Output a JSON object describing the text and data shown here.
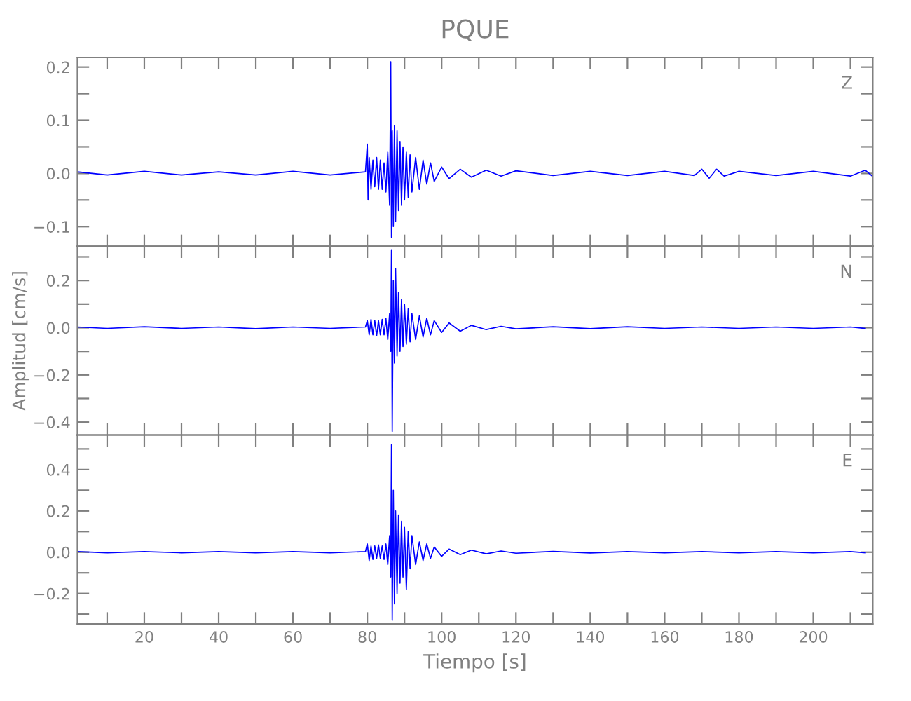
{
  "chart_data": [
    {
      "type": "line",
      "title": "PQUE",
      "annotations": [
        "Z"
      ],
      "tick_labels": "y",
      "grid": false,
      "legend": false,
      "marker": "none",
      "line_style": "solid",
      "xlim": [
        2,
        216
      ],
      "xticks": [
        {
          "value": 10,
          "label": null
        },
        {
          "value": 20,
          "label": null
        },
        {
          "value": 30,
          "label": null
        },
        {
          "value": 40,
          "label": null
        },
        {
          "value": 50,
          "label": null
        },
        {
          "value": 60,
          "label": null
        },
        {
          "value": 70,
          "label": null
        },
        {
          "value": 80,
          "label": null
        },
        {
          "value": 90,
          "label": null
        },
        {
          "value": 100,
          "label": null
        },
        {
          "value": 110,
          "label": null
        },
        {
          "value": 120,
          "label": null
        },
        {
          "value": 130,
          "label": null
        },
        {
          "value": 140,
          "label": null
        },
        {
          "value": 150,
          "label": null
        },
        {
          "value": 160,
          "label": null
        },
        {
          "value": 170,
          "label": null
        },
        {
          "value": 180,
          "label": null
        },
        {
          "value": 190,
          "label": null
        },
        {
          "value": 200,
          "label": null
        },
        {
          "value": 210,
          "label": null
        }
      ],
      "ylim": [
        -0.137,
        0.218
      ],
      "yticks": [
        {
          "value": -0.1,
          "label": "−0.1"
        },
        {
          "value": -0.05,
          "label": null
        },
        {
          "value": 0.0,
          "label": "0.0"
        },
        {
          "value": 0.05,
          "label": null
        },
        {
          "value": 0.1,
          "label": "0.1"
        },
        {
          "value": 0.15,
          "label": null
        },
        {
          "value": 0.2,
          "label": "0.2"
        }
      ],
      "series": [
        {
          "color": "#0000ff",
          "x": [
            2,
            10,
            20,
            30,
            40,
            50,
            60,
            70,
            79.5,
            80,
            80.2,
            80.5,
            81,
            81.5,
            82,
            82.5,
            83,
            83.5,
            84,
            84.5,
            85,
            85.5,
            86,
            86.3,
            86.5,
            86.7,
            87,
            87.3,
            87.6,
            88,
            88.4,
            88.8,
            89.2,
            89.6,
            90,
            90.5,
            91,
            91.5,
            92,
            93,
            94,
            95,
            96,
            97,
            98,
            100,
            102,
            105,
            108,
            112,
            116,
            120,
            130,
            140,
            150,
            160,
            168,
            170,
            172,
            174,
            176,
            180,
            190,
            200,
            210,
            214,
            216
          ],
          "values": [
            0.003,
            -0.003,
            0.004,
            -0.003,
            0.003,
            -0.003,
            0.004,
            -0.003,
            0.003,
            0.055,
            -0.05,
            0.03,
            -0.03,
            0.025,
            -0.025,
            0.03,
            -0.03,
            0.025,
            -0.03,
            0.02,
            -0.035,
            0.04,
            -0.06,
            0.21,
            -0.12,
            0.08,
            -0.1,
            0.09,
            -0.09,
            0.08,
            -0.07,
            0.06,
            -0.06,
            0.05,
            -0.05,
            0.04,
            -0.045,
            0.035,
            -0.035,
            0.03,
            -0.03,
            0.025,
            -0.02,
            0.02,
            -0.015,
            0.012,
            -0.01,
            0.008,
            -0.007,
            0.006,
            -0.005,
            0.005,
            -0.004,
            0.004,
            -0.004,
            0.004,
            -0.004,
            0.008,
            -0.009,
            0.008,
            -0.005,
            0.004,
            -0.004,
            0.004,
            -0.005,
            0.006,
            -0.006
          ]
        }
      ]
    },
    {
      "type": "line",
      "ylabel": "Amplitud [cm/s]",
      "annotations": [
        "N"
      ],
      "tick_labels": "y",
      "grid": false,
      "legend": false,
      "marker": "none",
      "line_style": "solid",
      "xlim": [
        2,
        216
      ],
      "xticks": [
        {
          "value": 10,
          "label": null
        },
        {
          "value": 20,
          "label": null
        },
        {
          "value": 30,
          "label": null
        },
        {
          "value": 40,
          "label": null
        },
        {
          "value": 50,
          "label": null
        },
        {
          "value": 60,
          "label": null
        },
        {
          "value": 70,
          "label": null
        },
        {
          "value": 80,
          "label": null
        },
        {
          "value": 90,
          "label": null
        },
        {
          "value": 100,
          "label": null
        },
        {
          "value": 110,
          "label": null
        },
        {
          "value": 120,
          "label": null
        },
        {
          "value": 130,
          "label": null
        },
        {
          "value": 140,
          "label": null
        },
        {
          "value": 150,
          "label": null
        },
        {
          "value": 160,
          "label": null
        },
        {
          "value": 170,
          "label": null
        },
        {
          "value": 180,
          "label": null
        },
        {
          "value": 190,
          "label": null
        },
        {
          "value": 200,
          "label": null
        },
        {
          "value": 210,
          "label": null
        }
      ],
      "ylim": [
        -0.455,
        0.345
      ],
      "yticks": [
        {
          "value": -0.4,
          "label": "−0.4"
        },
        {
          "value": -0.3,
          "label": null
        },
        {
          "value": -0.2,
          "label": "−0.2"
        },
        {
          "value": -0.1,
          "label": null
        },
        {
          "value": 0.0,
          "label": "0.0"
        },
        {
          "value": 0.1,
          "label": null
        },
        {
          "value": 0.2,
          "label": "0.2"
        },
        {
          "value": 0.3,
          "label": null
        }
      ],
      "series": [
        {
          "color": "#0000ff",
          "x": [
            2,
            10,
            20,
            30,
            40,
            50,
            60,
            70,
            79.5,
            80,
            80.5,
            81,
            81.5,
            82,
            82.5,
            83,
            83.5,
            84,
            84.5,
            85,
            85.5,
            86,
            86.3,
            86.5,
            86.7,
            87,
            87.3,
            87.6,
            88,
            88.4,
            88.8,
            89.2,
            89.6,
            90,
            90.5,
            91,
            91.5,
            92,
            93,
            94,
            95,
            96,
            97,
            98,
            100,
            102,
            105,
            108,
            112,
            116,
            120,
            130,
            140,
            150,
            160,
            170,
            180,
            190,
            200,
            210,
            214
          ],
          "values": [
            0.003,
            -0.003,
            0.004,
            -0.003,
            0.003,
            -0.004,
            0.003,
            -0.003,
            0.003,
            0.03,
            -0.03,
            0.035,
            -0.03,
            0.03,
            -0.035,
            0.03,
            -0.03,
            0.035,
            -0.03,
            0.04,
            -0.05,
            0.06,
            -0.1,
            0.33,
            -0.44,
            0.2,
            -0.15,
            0.25,
            -0.12,
            0.15,
            -0.1,
            0.12,
            -0.08,
            0.1,
            -0.07,
            0.08,
            -0.06,
            0.06,
            -0.05,
            0.05,
            -0.04,
            0.04,
            -0.03,
            0.03,
            -0.02,
            0.02,
            -0.015,
            0.01,
            -0.008,
            0.006,
            -0.005,
            0.004,
            -0.004,
            0.004,
            -0.003,
            0.003,
            -0.003,
            0.003,
            -0.003,
            0.003,
            -0.003
          ]
        }
      ]
    },
    {
      "type": "line",
      "xlabel": "Tiempo [s]",
      "annotations": [
        "E"
      ],
      "grid": false,
      "legend": false,
      "marker": "none",
      "line_style": "solid",
      "xlim": [
        2,
        216
      ],
      "xticks": [
        {
          "value": 10,
          "label": null
        },
        20,
        {
          "value": 30,
          "label": null
        },
        40,
        {
          "value": 50,
          "label": null
        },
        60,
        {
          "value": 70,
          "label": null
        },
        80,
        {
          "value": 90,
          "label": null
        },
        100,
        {
          "value": 110,
          "label": null
        },
        120,
        {
          "value": 130,
          "label": null
        },
        140,
        {
          "value": 150,
          "label": null
        },
        160,
        {
          "value": 170,
          "label": null
        },
        180,
        {
          "value": 190,
          "label": null
        },
        200,
        {
          "value": 210,
          "label": null
        }
      ],
      "ylim": [
        -0.347,
        0.567
      ],
      "yticks": [
        {
          "value": -0.3,
          "label": null
        },
        {
          "value": -0.2,
          "label": "−0.2"
        },
        {
          "value": -0.1,
          "label": null
        },
        {
          "value": 0.0,
          "label": "0.0"
        },
        {
          "value": 0.1,
          "label": null
        },
        {
          "value": 0.2,
          "label": "0.2"
        },
        {
          "value": 0.3,
          "label": null
        },
        {
          "value": 0.4,
          "label": "0.4"
        },
        {
          "value": 0.5,
          "label": null
        }
      ],
      "series": [
        {
          "color": "#0000ff",
          "x": [
            2,
            10,
            20,
            30,
            40,
            50,
            60,
            70,
            79.5,
            80,
            80.5,
            81,
            81.5,
            82,
            82.5,
            83,
            83.5,
            84,
            84.5,
            85,
            85.5,
            86,
            86.3,
            86.5,
            86.7,
            87,
            87.3,
            87.6,
            88,
            88.4,
            88.8,
            89.2,
            89.6,
            90,
            90.5,
            91,
            91.5,
            92,
            93,
            94,
            95,
            96,
            97,
            98,
            100,
            102,
            105,
            108,
            112,
            116,
            120,
            130,
            140,
            150,
            160,
            170,
            180,
            190,
            200,
            210,
            214
          ],
          "values": [
            0.003,
            -0.003,
            0.003,
            -0.003,
            0.003,
            -0.003,
            0.003,
            -0.003,
            0.003,
            0.04,
            -0.04,
            0.03,
            -0.035,
            0.03,
            -0.03,
            0.035,
            -0.03,
            0.03,
            -0.035,
            0.04,
            -0.06,
            0.08,
            -0.12,
            0.52,
            -0.33,
            0.3,
            -0.25,
            0.2,
            -0.2,
            0.18,
            -0.15,
            0.15,
            -0.12,
            0.12,
            -0.18,
            0.1,
            -0.08,
            0.08,
            -0.06,
            0.05,
            -0.04,
            0.04,
            -0.03,
            0.025,
            -0.02,
            0.015,
            -0.012,
            0.01,
            -0.008,
            0.006,
            -0.005,
            0.004,
            -0.004,
            0.003,
            -0.003,
            0.003,
            -0.003,
            0.003,
            -0.003,
            0.003,
            -0.003
          ]
        }
      ]
    }
  ]
}
